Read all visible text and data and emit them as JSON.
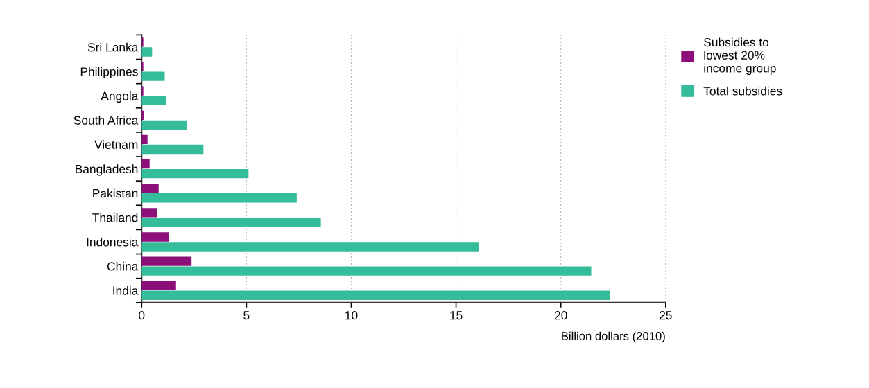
{
  "chart_data": {
    "type": "bar",
    "orientation": "horizontal",
    "xlabel": "Billion dollars (2010)",
    "categories": [
      "Sri Lanka",
      "Philippines",
      "Angola",
      "South Africa",
      "Vietnam",
      "Bangladesh",
      "Pakistan",
      "Thailand",
      "Indonesia",
      "China",
      "India"
    ],
    "series": [
      {
        "name": "Subsidies to\nlowest 20%\nincome group",
        "color": "#8c0f7a",
        "values": [
          0.08,
          0.08,
          0.08,
          0.1,
          0.28,
          0.38,
          0.81,
          0.75,
          1.31,
          2.38,
          1.64
        ]
      },
      {
        "name": "Total subsidies",
        "color": "#34bc9b",
        "values": [
          0.5,
          1.1,
          1.15,
          2.15,
          2.95,
          5.1,
          7.4,
          8.55,
          16.1,
          21.45,
          22.35
        ]
      }
    ],
    "xlim": [
      0,
      25
    ],
    "xticks": [
      0,
      5,
      10,
      15,
      20,
      25
    ],
    "grid": "x",
    "legend": "top right"
  }
}
